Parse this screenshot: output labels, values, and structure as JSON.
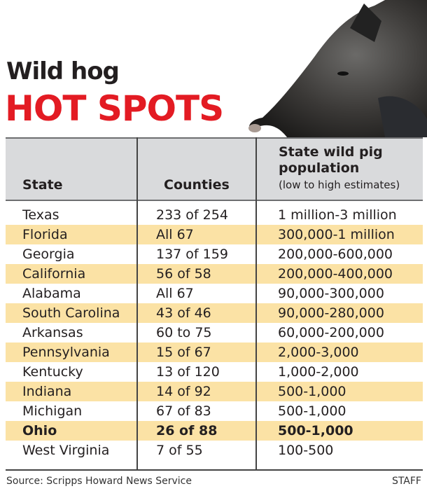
{
  "header": {
    "title_line1": "Wild hog",
    "title_line2": "HOT SPOTS",
    "title_color": "#e31b23",
    "image": "wild-hog-photo"
  },
  "columns": {
    "state": "State",
    "counties": "Counties",
    "population_line1": "State wild pig",
    "population_line2": "population",
    "population_note": "(low to high estimates)"
  },
  "chart_data": {
    "type": "table",
    "columns": [
      "State",
      "Counties",
      "State wild pig population (low to high estimates)"
    ],
    "highlight_color": "#fbe2a5",
    "header_color": "#d9dadc",
    "rows": [
      {
        "state": "Texas",
        "counties": "233 of 254",
        "population": "1 million-3 million",
        "highlight": false,
        "bold": false
      },
      {
        "state": "Florida",
        "counties": "All 67",
        "population": "300,000-1 million",
        "highlight": true,
        "bold": false
      },
      {
        "state": "Georgia",
        "counties": "137 of 159",
        "population": "200,000-600,000",
        "highlight": false,
        "bold": false
      },
      {
        "state": "California",
        "counties": "56 of 58",
        "population": "200,000-400,000",
        "highlight": true,
        "bold": false
      },
      {
        "state": "Alabama",
        "counties": "All 67",
        "population": "90,000-300,000",
        "highlight": false,
        "bold": false
      },
      {
        "state": "South Carolina",
        "counties": "43 of 46",
        "population": "90,000-280,000",
        "highlight": true,
        "bold": false
      },
      {
        "state": "Arkansas",
        "counties": "60 to 75",
        "population": "60,000-200,000",
        "highlight": false,
        "bold": false
      },
      {
        "state": "Pennsylvania",
        "counties": "15 of 67",
        "population": "2,000-3,000",
        "highlight": true,
        "bold": false
      },
      {
        "state": "Kentucky",
        "counties": "13 of 120",
        "population": "1,000-2,000",
        "highlight": false,
        "bold": false
      },
      {
        "state": "Indiana",
        "counties": "14 of 92",
        "population": "500-1,000",
        "highlight": true,
        "bold": false
      },
      {
        "state": "Michigan",
        "counties": "67 of 83",
        "population": "500-1,000",
        "highlight": false,
        "bold": false
      },
      {
        "state": "Ohio",
        "counties": "26 of 88",
        "population": "500-1,000",
        "highlight": true,
        "bold": true
      },
      {
        "state": "West Virginia",
        "counties": "7 of 55",
        "population": "100-500",
        "highlight": false,
        "bold": false
      }
    ]
  },
  "footer": {
    "source": "Source: Scripps Howard News Service",
    "credit": "STAFF"
  }
}
